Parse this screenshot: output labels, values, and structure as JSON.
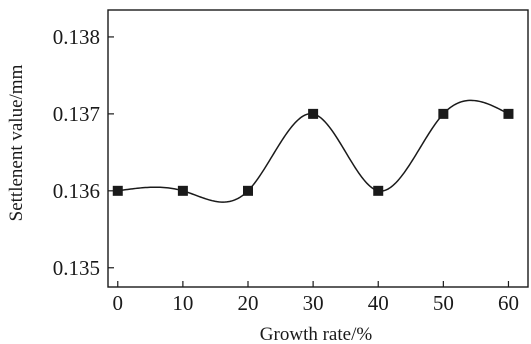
{
  "chart_data": {
    "type": "line",
    "title": "",
    "xlabel": "Growth rate/%",
    "ylabel": "Settlenent value/mm",
    "x": [
      0,
      10,
      20,
      30,
      40,
      50,
      60
    ],
    "series": [
      {
        "values": [
          0.136,
          0.136,
          0.136,
          0.137,
          0.136,
          0.137,
          0.137
        ]
      }
    ],
    "xlim": [
      -1.5,
      63
    ],
    "ylim": [
      0.13475,
      0.13835
    ],
    "x_ticks": [
      0,
      10,
      20,
      30,
      40,
      50,
      60
    ],
    "y_ticks": [
      0.135,
      0.136,
      0.137,
      0.138
    ],
    "x_tick_labels": [
      "0",
      "10",
      "20",
      "30",
      "40",
      "50",
      "60"
    ],
    "y_tick_labels": [
      "0.135",
      "0.136",
      "0.137",
      "0.138"
    ],
    "grid": false,
    "line_style": "smooth",
    "marker": "square",
    "line_color": "#1a1a1a",
    "marker_color": "#1a1a1a"
  }
}
